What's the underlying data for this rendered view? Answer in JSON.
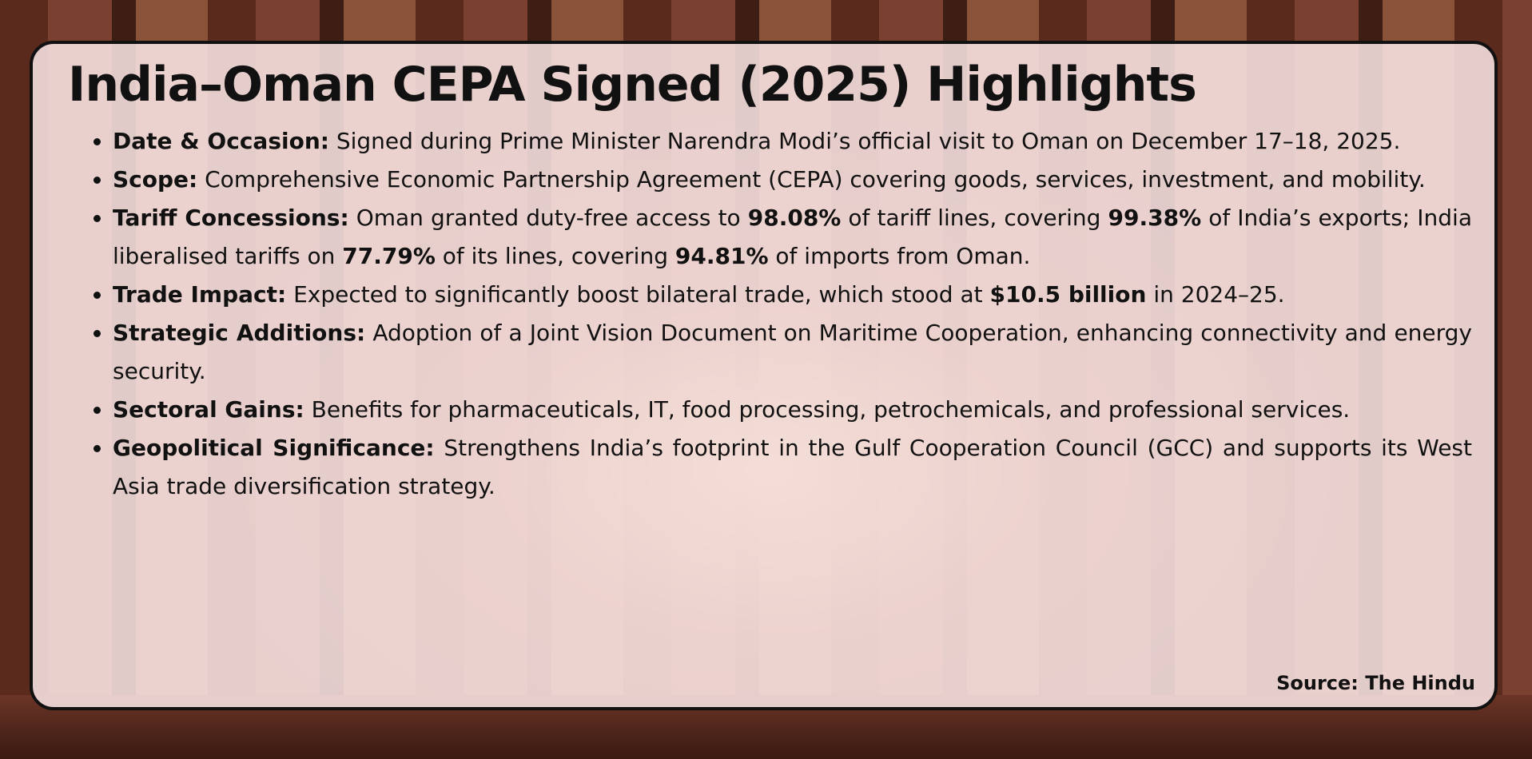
{
  "header": {
    "title": "India–Oman CEPA Signed (2025) Highlights"
  },
  "items": [
    {
      "label": "Date & Occasion:",
      "parts": [
        {
          "text": " Signed during Prime Minister Narendra Modi’s official visit to Oman on December 17–18, 2025.",
          "bold": false
        }
      ]
    },
    {
      "label": "Scope:",
      "parts": [
        {
          "text": " Comprehensive Economic Partnership Agreement (CEPA) covering goods, services, investment, and mobility.",
          "bold": false
        }
      ]
    },
    {
      "label": "Tariff Concessions:",
      "parts": [
        {
          "text": " Oman granted duty-free access to ",
          "bold": false
        },
        {
          "text": "98.08%",
          "bold": true
        },
        {
          "text": " of tariff lines, covering ",
          "bold": false
        },
        {
          "text": "99.38%",
          "bold": true
        },
        {
          "text": " of India’s exports; India liberalised tariffs on ",
          "bold": false
        },
        {
          "text": "77.79%",
          "bold": true
        },
        {
          "text": " of its lines, covering ",
          "bold": false
        },
        {
          "text": "94.81%",
          "bold": true
        },
        {
          "text": " of imports from Oman.",
          "bold": false
        }
      ]
    },
    {
      "label": "Trade Impact:",
      "parts": [
        {
          "text": " Expected to significantly boost bilateral trade, which stood at ",
          "bold": false
        },
        {
          "text": "$10.5 billion",
          "bold": true
        },
        {
          "text": " in 2024–25.",
          "bold": false
        }
      ]
    },
    {
      "label": "Strategic Additions:",
      "parts": [
        {
          "text": " Adoption of a Joint Vision Document on Maritime Cooperation, enhancing connectivity and energy security.",
          "bold": false
        }
      ]
    },
    {
      "label": "Sectoral Gains:",
      "parts": [
        {
          "text": " Benefits for pharmaceuticals, IT, food processing, petrochemicals, and professional services.",
          "bold": false
        }
      ]
    },
    {
      "label": "Geopolitical Significance:",
      "parts": [
        {
          "text": " Strengthens India’s footprint in the Gulf Cooperation Council (GCC) and supports its West Asia trade diversification strategy.",
          "bold": false
        }
      ]
    }
  ],
  "footer": {
    "source": "Source: The Hindu"
  }
}
